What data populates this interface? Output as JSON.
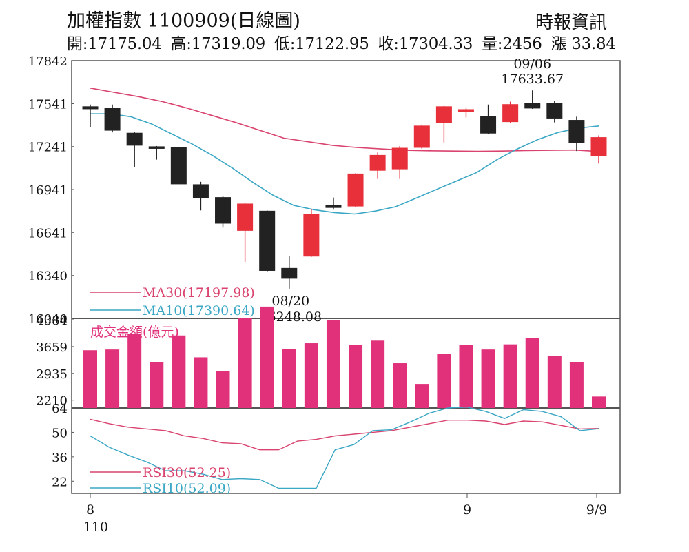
{
  "header": {
    "title": "加權指數 1100909(日線圖)",
    "source": "時報資訊",
    "open": "開:17175.04",
    "high": "高:17319.09",
    "low": "低:17122.95",
    "close": "收:17304.33",
    "volume": "量:2456",
    "change": "漲 33.84"
  },
  "colors": {
    "up": "#e8303a",
    "down": "#222222",
    "ma30": "#d9436e",
    "ma10": "#3aa7c4",
    "volume_bar": "#e0317a",
    "axis": "#555555"
  },
  "chart_data": [
    {
      "type": "candlestick",
      "title": "",
      "ylim": [
        16040,
        17842
      ],
      "yticks": [
        17842,
        17541,
        17241,
        16941,
        16641,
        16340,
        16040
      ],
      "candles": [
        {
          "open": 17520,
          "high": 17535,
          "low": 17375,
          "close": 17505
        },
        {
          "open": 17510,
          "high": 17535,
          "low": 17340,
          "close": 17355
        },
        {
          "open": 17335,
          "high": 17345,
          "low": 17100,
          "close": 17250
        },
        {
          "open": 17240,
          "high": 17245,
          "low": 17150,
          "close": 17235
        },
        {
          "open": 17235,
          "high": 17240,
          "low": 16980,
          "close": 16980
        },
        {
          "open": 16975,
          "high": 16995,
          "low": 16795,
          "close": 16885
        },
        {
          "open": 16885,
          "high": 16895,
          "low": 16675,
          "close": 16705
        },
        {
          "open": 16655,
          "high": 16850,
          "low": 16435,
          "close": 16840
        },
        {
          "open": 16790,
          "high": 16795,
          "low": 16365,
          "close": 16375
        },
        {
          "open": 16390,
          "high": 16475,
          "low": 16248.08,
          "close": 16320
        },
        {
          "open": 16475,
          "high": 16805,
          "low": 16470,
          "close": 16770
        },
        {
          "open": 16830,
          "high": 16885,
          "low": 16800,
          "close": 16815
        },
        {
          "open": 16825,
          "high": 17055,
          "low": 16820,
          "close": 17050
        },
        {
          "open": 17075,
          "high": 17200,
          "low": 17015,
          "close": 17180
        },
        {
          "open": 17085,
          "high": 17245,
          "low": 17015,
          "close": 17230
        },
        {
          "open": 17235,
          "high": 17395,
          "low": 17225,
          "close": 17385
        },
        {
          "open": 17410,
          "high": 17525,
          "low": 17270,
          "close": 17520
        },
        {
          "open": 17495,
          "high": 17515,
          "low": 17445,
          "close": 17500
        },
        {
          "open": 17450,
          "high": 17535,
          "low": 17330,
          "close": 17335
        },
        {
          "open": 17415,
          "high": 17555,
          "low": 17405,
          "close": 17535
        },
        {
          "open": 17545,
          "high": 17633.67,
          "low": 17505,
          "close": 17510
        },
        {
          "open": 17545,
          "high": 17560,
          "low": 17410,
          "close": 17440
        },
        {
          "open": 17425,
          "high": 17450,
          "low": 17210,
          "close": 17270
        },
        {
          "open": 17175.04,
          "high": 17319.09,
          "low": 17122.95,
          "close": 17304.33
        }
      ],
      "ma30": [
        17650,
        17620,
        17590,
        17555,
        17510,
        17460,
        17410,
        17355,
        17300,
        17275,
        17250,
        17235,
        17225,
        17215,
        17212,
        17210,
        17208,
        17210,
        17213,
        17215,
        17217,
        17207
      ],
      "ma10": [
        17470,
        17470,
        17450,
        17400,
        17330,
        17260,
        17180,
        17090,
        16990,
        16900,
        16830,
        16800,
        16780,
        16770,
        16790,
        16820,
        16880,
        16940,
        17000,
        17060,
        17150,
        17225,
        17290,
        17340,
        17370,
        17385
      ],
      "legend": {
        "ma30": "MA30(17197.98)",
        "ma10": "MA10(17390.64)"
      },
      "annotations": {
        "high": {
          "date": "09/06",
          "value": "17633.67"
        },
        "low": {
          "date": "08/20",
          "value": "16248.08"
        }
      }
    },
    {
      "type": "bar",
      "title": "成交金額(億元)",
      "ylim": [
        2000,
        4384
      ],
      "yticks": [
        4384,
        3659,
        2935,
        2210
      ],
      "values": [
        3560,
        3580,
        4000,
        3230,
        3960,
        3370,
        2990,
        4440,
        4740,
        3590,
        3750,
        4380,
        3700,
        3820,
        3210,
        2650,
        3470,
        3710,
        3580,
        3720,
        3890,
        3400,
        3230,
        2310
      ]
    },
    {
      "type": "line",
      "title": "",
      "ylim": [
        15,
        64
      ],
      "yticks": [
        64,
        50,
        36,
        22
      ],
      "rsi30": [
        57.5,
        55,
        53,
        52,
        51,
        48,
        46.5,
        44,
        43.5,
        40,
        40,
        45,
        46,
        48,
        49,
        50,
        51,
        53,
        55,
        57,
        57,
        56.5,
        54.5,
        56.5,
        56,
        54,
        52,
        52.25
      ],
      "rsi10": [
        48,
        41.5,
        37,
        33,
        28,
        28,
        26,
        23,
        23.5,
        23,
        18,
        18,
        18,
        40,
        43,
        51,
        51.5,
        56,
        61,
        64,
        64.5,
        62,
        58,
        63,
        62,
        59,
        51,
        52.09
      ],
      "legend": {
        "rsi30": "RSI30(52.25)",
        "rsi10": "RSI10(52.09)"
      },
      "xlabels": [
        {
          "text": "8",
          "sub": "110"
        },
        {
          "text": "9",
          "sub": ""
        },
        {
          "text": "9/9",
          "sub": ""
        }
      ]
    }
  ]
}
